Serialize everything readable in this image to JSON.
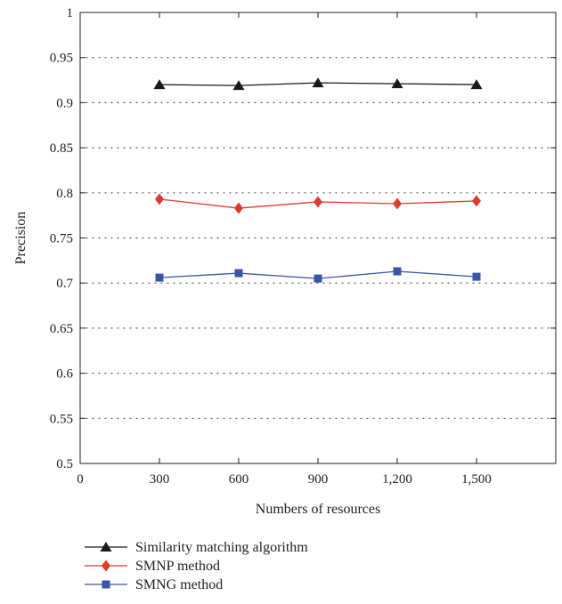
{
  "chart_data": {
    "type": "line",
    "title": "",
    "xlabel": "Numbers of resources",
    "ylabel": "Precision",
    "xlim": [
      0,
      1800
    ],
    "ylim": [
      0.5,
      1
    ],
    "x_ticks": [
      0,
      300,
      600,
      900,
      1200,
      1500
    ],
    "x_tick_labels": [
      "0",
      "300",
      "600",
      "900",
      "1,200",
      "1,500"
    ],
    "y_ticks": [
      0.5,
      0.55,
      0.6,
      0.65,
      0.7,
      0.75,
      0.8,
      0.85,
      0.9,
      0.95,
      1
    ],
    "y_tick_labels": [
      "0.5",
      "0.55",
      "0.6",
      "0.65",
      "0.7",
      "0.75",
      "0.8",
      "0.85",
      "0.9",
      "0.95",
      "1"
    ],
    "grid": "horizontal dotted",
    "legend_position": "bottom-left, below chart",
    "x": [
      300,
      600,
      900,
      1200,
      1500
    ],
    "series": [
      {
        "name": "Similarity matching algorithm",
        "marker": "triangle",
        "color": "#1a1a1a",
        "values": [
          0.92,
          0.919,
          0.922,
          0.921,
          0.92
        ]
      },
      {
        "name": "SMNP method",
        "marker": "diamond",
        "color": "#e03a2e",
        "values": [
          0.793,
          0.783,
          0.79,
          0.788,
          0.791
        ]
      },
      {
        "name": "SMNG method",
        "marker": "square",
        "color": "#3a55a6",
        "values": [
          0.706,
          0.711,
          0.705,
          0.713,
          0.707
        ]
      }
    ]
  }
}
